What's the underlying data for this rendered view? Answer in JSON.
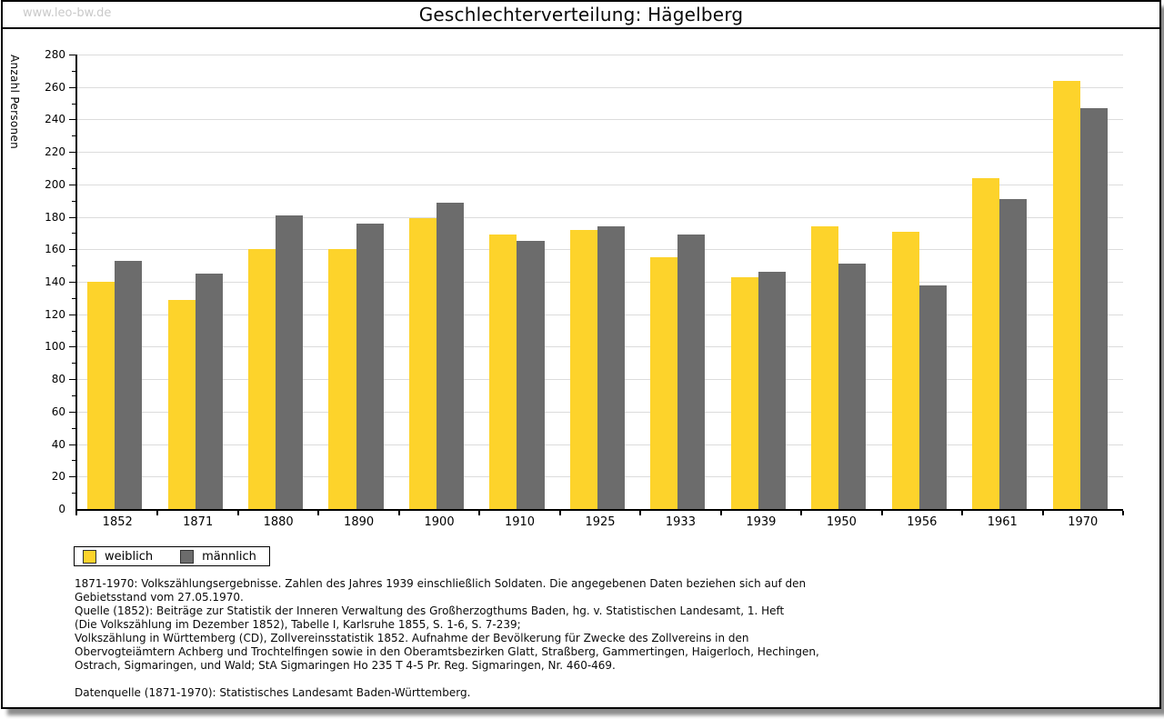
{
  "watermark": "www.leo-bw.de",
  "chart_data": {
    "type": "bar",
    "title": "Geschlechterverteilung: Hägelberg",
    "ylabel": "Anzahl Personen",
    "xlabel": "",
    "ylim": [
      0,
      280
    ],
    "ytick_step": 20,
    "ytick_minor_step": 10,
    "grid": true,
    "legend_position": "bottom-left",
    "categories": [
      "1852",
      "1871",
      "1880",
      "1890",
      "1900",
      "1910",
      "1925",
      "1933",
      "1939",
      "1950",
      "1956",
      "1961",
      "1970"
    ],
    "series": [
      {
        "name": "weiblich",
        "color": "#FDD32B",
        "values": [
          140,
          129,
          160,
          160,
          179,
          169,
          172,
          155,
          143,
          174,
          171,
          204,
          264
        ]
      },
      {
        "name": "männlich",
        "color": "#6C6C6C",
        "values": [
          153,
          145,
          181,
          176,
          189,
          165,
          174,
          169,
          146,
          151,
          138,
          191,
          247
        ]
      }
    ]
  },
  "footer": {
    "lines": [
      "1871-1970: Volkszählungsergebnisse. Zahlen des Jahres 1939 einschließlich Soldaten. Die angegebenen Daten beziehen sich auf den",
      "Gebietsstand vom 27.05.1970.",
      "Quelle (1852): Beiträge zur Statistik der Inneren Verwaltung des Großherzogthums Baden, hg. v. Statistischen Landesamt, 1. Heft",
      "(Die Volkszählung im Dezember 1852), Tabelle I, Karlsruhe 1855, S. 1-6, S. 7-239;",
      "Volkszählung in Württemberg (CD), Zollvereinsstatistik 1852. Aufnahme der Bevölkerung für Zwecke des Zollvereins in den",
      "Obervogteiämtern Achberg und Trochtelfingen sowie in den Oberamtsbezirken Glatt, Straßberg, Gammertingen, Haigerloch, Hechingen,",
      "Ostrach, Sigmaringen, und Wald; StA Sigmaringen Ho 235 T 4-5 Pr. Reg. Sigmaringen, Nr. 460-469."
    ],
    "datasource_line": "Datenquelle (1871-1970): Statistisches Landesamt Baden-Württemberg."
  }
}
